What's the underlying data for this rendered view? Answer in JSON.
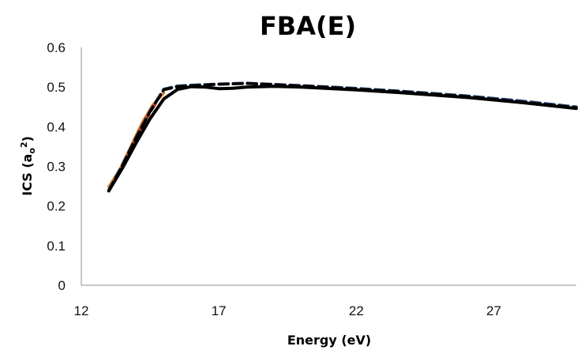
{
  "chart_data": {
    "type": "line",
    "title": "FBA(E)",
    "xlabel": "Energy (eV)",
    "ylabel_parts": {
      "main": "ICS (a",
      "sub": "o",
      "sup": "2",
      "close": ")"
    },
    "xlim": [
      12,
      30
    ],
    "ylim": [
      0,
      0.6
    ],
    "x_ticks": [
      12,
      17,
      22,
      27
    ],
    "y_ticks": [
      0,
      0.1,
      0.2,
      0.3,
      0.4,
      0.5,
      0.6
    ],
    "y_tick_labels": [
      "0",
      "0.1",
      "0.2",
      "0.3",
      "0.4",
      "0.5",
      "0.6"
    ],
    "grid": false,
    "series": [
      {
        "color": "#e07b1a",
        "dash": "solid",
        "x": [
          13.0,
          13.4,
          13.8,
          14.2,
          14.6,
          15.0
        ],
        "y": [
          0.248,
          0.292,
          0.35,
          0.408,
          0.455,
          0.485
        ]
      },
      {
        "color": "#c0392b",
        "dash": "dashed",
        "x": [
          13.1,
          13.5,
          13.9,
          14.3,
          14.7
        ],
        "y": [
          0.25,
          0.3,
          0.358,
          0.412,
          0.458
        ]
      },
      {
        "color": "#1f3a66",
        "dash": "dashed",
        "x": [
          13.0,
          13.5,
          14.0,
          14.5,
          15.0,
          15.5,
          16.0,
          17.0,
          18.0,
          19.0,
          20.0,
          22.0,
          24.0,
          26.0,
          28.0,
          30.0
        ],
        "y": [
          0.24,
          0.305,
          0.375,
          0.44,
          0.495,
          0.503,
          0.505,
          0.508,
          0.51,
          0.507,
          0.504,
          0.497,
          0.488,
          0.478,
          0.465,
          0.45
        ]
      },
      {
        "color": "#000000",
        "dash": "dashed",
        "x": [
          13.0,
          13.5,
          14.0,
          14.5,
          15.0,
          15.5,
          16.0,
          17.0,
          18.0,
          19.0,
          20.0,
          22.0,
          24.0,
          26.0,
          28.0,
          30.0
        ],
        "y": [
          0.238,
          0.302,
          0.372,
          0.438,
          0.493,
          0.501,
          0.503,
          0.507,
          0.509,
          0.506,
          0.503,
          0.495,
          0.486,
          0.476,
          0.462,
          0.448
        ]
      },
      {
        "color": "#000000",
        "dash": "solid",
        "x": [
          13.0,
          13.5,
          14.0,
          14.5,
          15.0,
          15.5,
          16.0,
          16.5,
          17.0,
          17.5,
          18.0,
          19.0,
          20.0,
          22.0,
          24.0,
          26.0,
          28.0,
          30.0
        ],
        "y": [
          0.238,
          0.296,
          0.36,
          0.42,
          0.47,
          0.494,
          0.501,
          0.5,
          0.496,
          0.497,
          0.5,
          0.502,
          0.5,
          0.493,
          0.484,
          0.474,
          0.461,
          0.446
        ]
      }
    ]
  }
}
